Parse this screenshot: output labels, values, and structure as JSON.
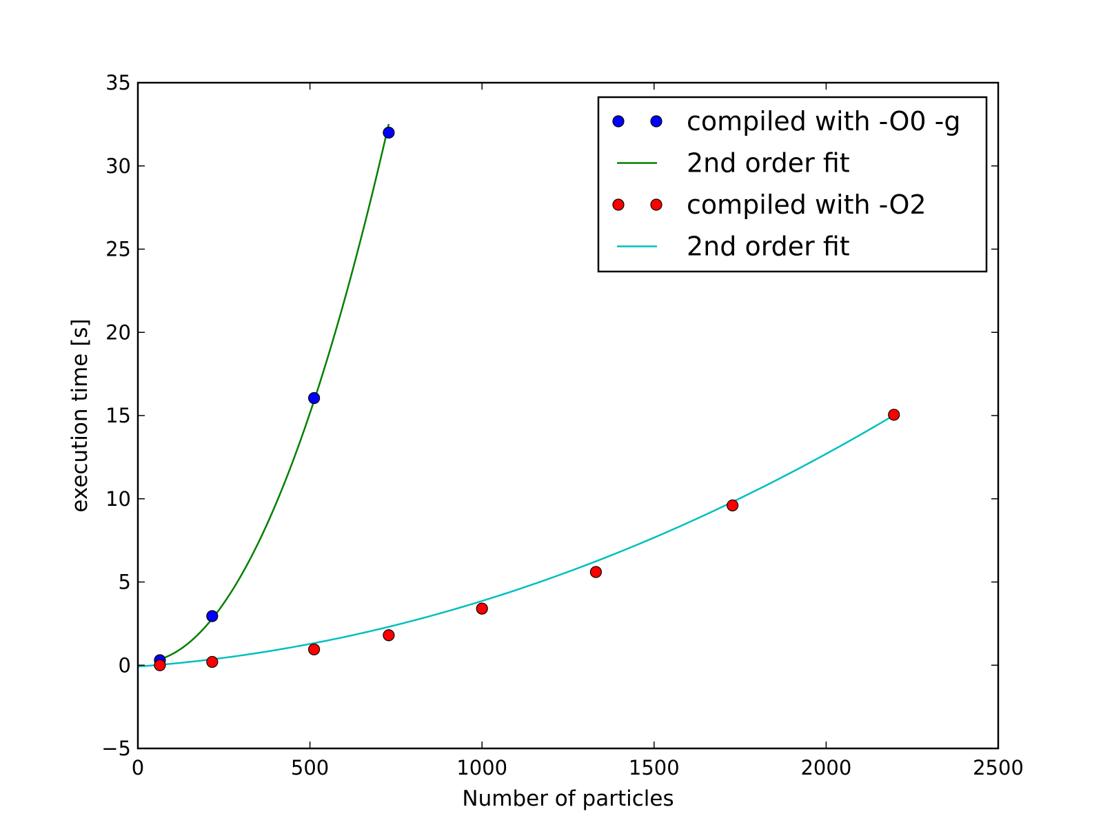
{
  "chart_data": {
    "type": "scatter",
    "title": "",
    "xlabel": "Number of particles",
    "ylabel": "execution time [s]",
    "xlim": [
      0,
      2500
    ],
    "ylim": [
      -5,
      35
    ],
    "xticks": [
      0,
      500,
      1000,
      1500,
      2000,
      2500
    ],
    "yticks": [
      -5,
      0,
      5,
      10,
      15,
      20,
      25,
      30,
      35
    ],
    "xtick_labels": [
      "0",
      "500",
      "1000",
      "1500",
      "2000",
      "2500"
    ],
    "ytick_labels": [
      "−5",
      "0",
      "5",
      "10",
      "15",
      "20",
      "25",
      "30",
      "35"
    ],
    "grid": false,
    "legend_position": "top-right",
    "series": [
      {
        "name": "compiled with -O0 -g",
        "kind": "points",
        "color": "#0000ff",
        "x": [
          64,
          216,
          512,
          729
        ],
        "y": [
          0.3,
          2.95,
          16.05,
          32.0
        ]
      },
      {
        "name": "2nd order fit",
        "kind": "fit",
        "color": "#008000",
        "x_range": [
          64,
          729
        ],
        "coefficients": [
          6.3e-05,
          -0.0016,
          0.2
        ]
      },
      {
        "name": "compiled with -O2",
        "kind": "points",
        "color": "#ff0000",
        "x": [
          64,
          216,
          512,
          729,
          1000,
          1331,
          1728,
          2197
        ],
        "y": [
          0.0,
          0.2,
          0.95,
          1.8,
          3.4,
          5.6,
          9.6,
          15.05
        ]
      },
      {
        "name": "2nd order fit",
        "kind": "fit",
        "color": "#00bfbf",
        "x_range": [
          0,
          2197
        ],
        "coefficients": [
          2.45e-06,
          0.00149,
          -0.08
        ]
      }
    ]
  }
}
